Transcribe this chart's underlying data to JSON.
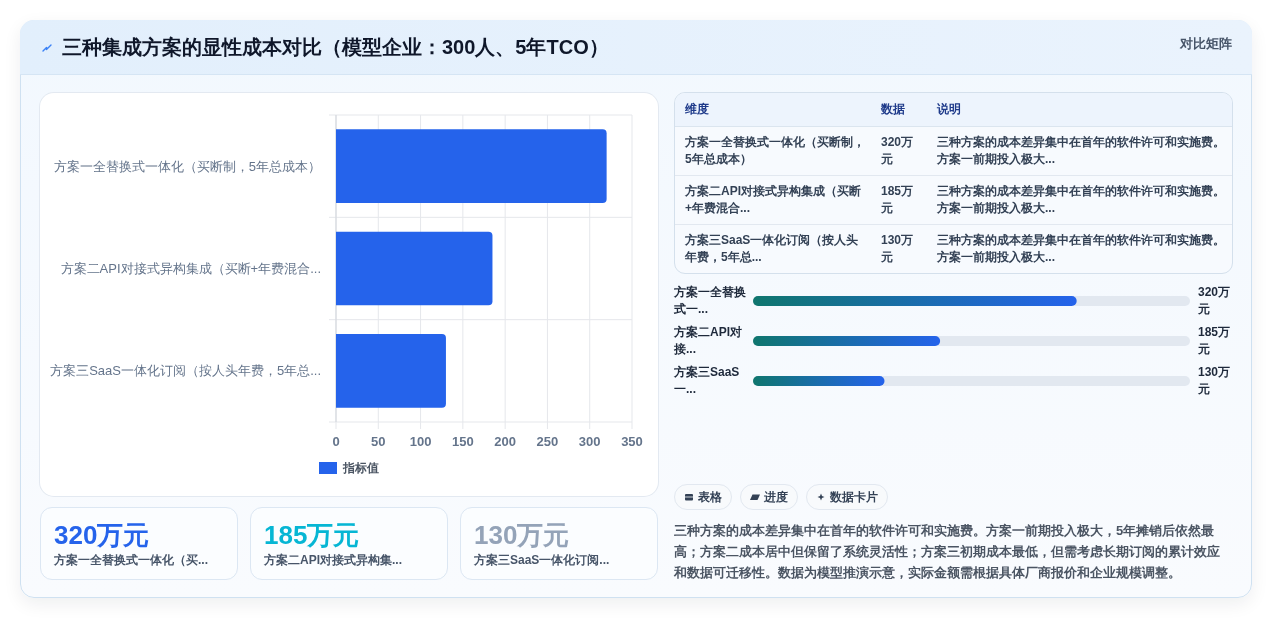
{
  "chart_data": [
    {
      "type": "other",
      "title": "三种集成方案的显性成本对比（模型企业：300人、5年TCO）",
      "annotations": [
        "对比矩阵"
      ]
    },
    {
      "type": "bar",
      "orientation": "horizontal",
      "categories": [
        "方案一全替换式一体化（买断制，5年总成本）",
        "方案二API对接式异构集成（买断+年费混合...",
        "方案三SaaS一体化订阅（按人头年费，5年总..."
      ],
      "series": [
        {
          "name": "指标值",
          "color": "#2563eb",
          "values": [
            320,
            185,
            130
          ]
        }
      ],
      "xlim": [
        0,
        350
      ],
      "xticks": [
        0,
        50,
        100,
        150,
        200,
        250,
        300,
        350
      ],
      "grid": true,
      "legend": "bottom"
    },
    {
      "type": "other",
      "categories": [
        "维度",
        "数据",
        "说明"
      ],
      "cell_labels": [
        [
          "方案一全替换式一体化（买断制，5年总成本）",
          "320万元",
          "三种方案的成本差异集中在首年的软件许可和实施费。方案一前期投入极大..."
        ],
        [
          "方案二API对接式异构集成（买断+年费混合...",
          "185万元",
          "三种方案的成本差异集中在首年的软件许可和实施费。方案一前期投入极大..."
        ],
        [
          "方案三SaaS一体化订阅（按人头年费，5年总...",
          "130万元",
          "三种方案的成本差异集中在首年的软件许可和实施费。方案一前期投入极大..."
        ]
      ]
    },
    {
      "type": "bar",
      "orientation": "horizontal",
      "categories": [
        "方案一全替换式一...",
        "方案二API对接...",
        "方案三SaaS一..."
      ],
      "values": [
        320,
        185,
        130
      ],
      "value_labels": [
        "320万元",
        "185万元",
        "130万元"
      ],
      "color": "#2563eb"
    },
    {
      "type": "other",
      "categories": [
        "方案一全替换式一体化（买...",
        "方案二API对接式异构集...",
        "方案三SaaS一体化订阅..."
      ],
      "value_labels": [
        "320万元",
        "185万元",
        "130万元"
      ]
    },
    {
      "type": "other",
      "annotations": [
        "表格",
        "进度",
        "数据卡片",
        "三种方案的成本差异集中在首年的软件许可和实施费。方案一前期投入极大，5年摊销后依然最高；方案二成本居中但保留了系统灵活性；方案三初期成本最低，但需考虑长期订阅的累计效应和数据可迁移性。数据为模型推演示意，实际金额需根据具体厂商报价和企业规模调整。"
      ]
    }
  ]
}
